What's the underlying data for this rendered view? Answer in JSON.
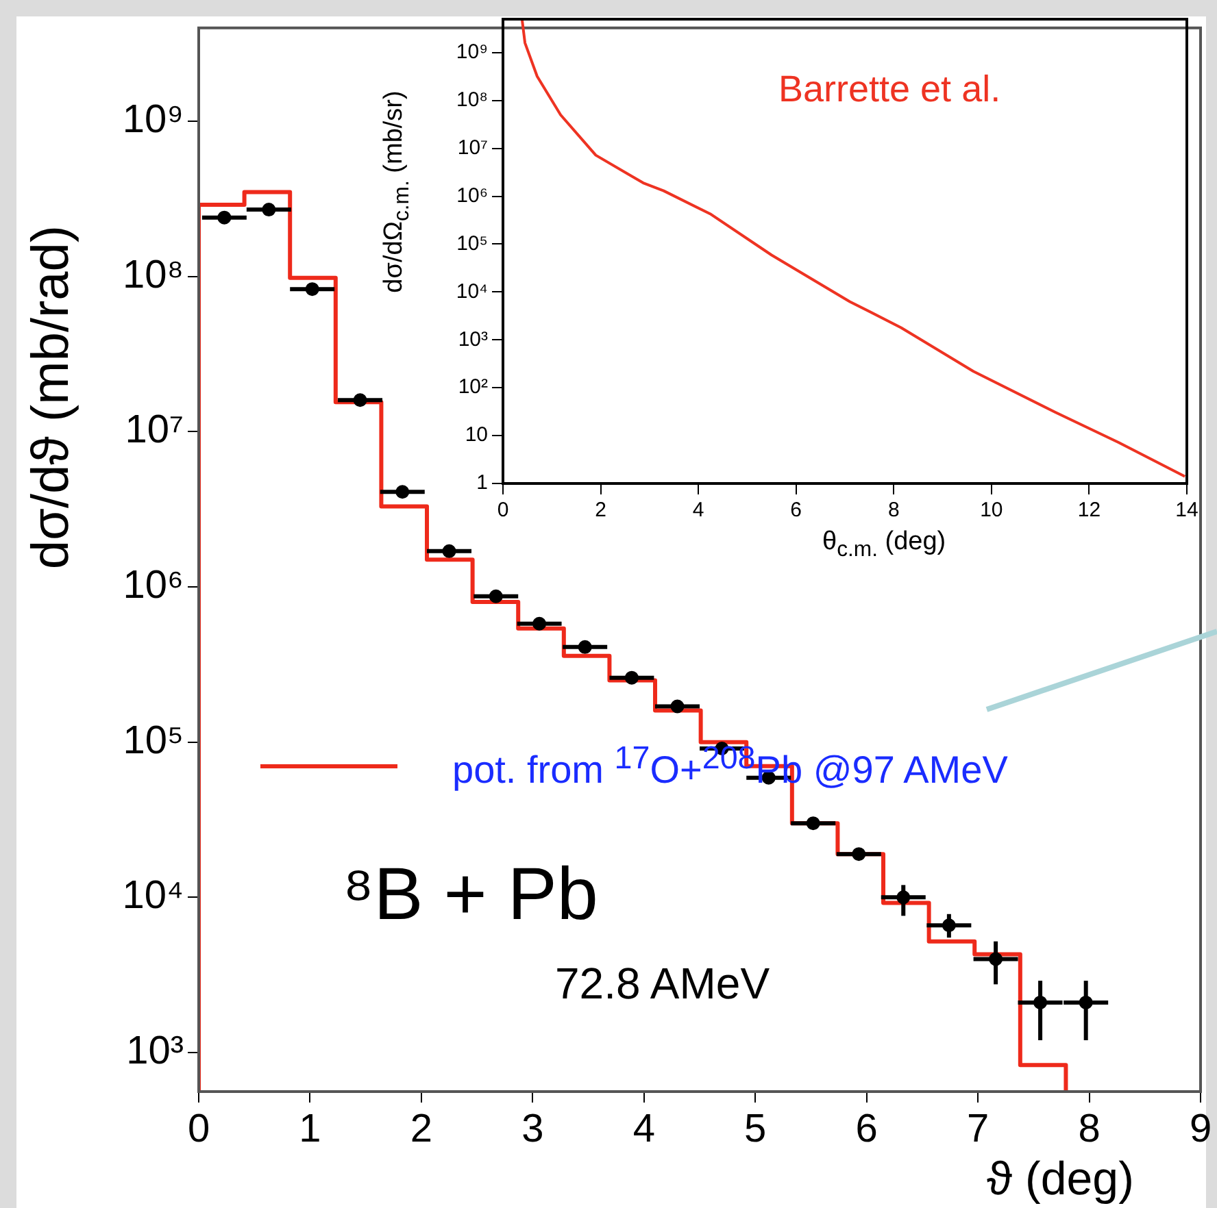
{
  "chart_data": [
    {
      "type": "histogram",
      "xlabel": "ϑ (deg)",
      "ylabel": "dσ/dϑ (mb/rad)",
      "xlim": [
        0,
        9
      ],
      "ylim": [
        560,
        4000000000
      ],
      "xticks": [
        0,
        1,
        2,
        3,
        4,
        5,
        6,
        7,
        8,
        9
      ],
      "yticks": [
        {
          "value": 1000,
          "label": "10³"
        },
        {
          "value": 10000,
          "label": "10⁴"
        },
        {
          "value": 100000,
          "label": "10⁵"
        },
        {
          "value": 1000000,
          "label": "10⁶"
        },
        {
          "value": 10000000,
          "label": "10⁷"
        },
        {
          "value": 100000000,
          "label": "10⁸"
        },
        {
          "value": 1000000000,
          "label": "10⁹"
        }
      ],
      "log": "y",
      "grid": false,
      "legend": "left",
      "marker": "circle",
      "annotations": [
        "⁸B + Pb",
        "72.8 AMeV"
      ],
      "series": [
        {
          "type": "histogram",
          "name": "pot. from $^{17}$O+$^{208}$Pb @97 AMeV",
          "color": "#ee2a1b",
          "bins": [
            0,
            0.41,
            0.82,
            1.23,
            1.64,
            2.05,
            2.46,
            2.87,
            3.28,
            3.69,
            4.1,
            4.51,
            4.92,
            5.33,
            5.74,
            6.15,
            6.56,
            6.97,
            7.38,
            7.79
          ],
          "values": [
            290000000,
            350000000,
            98000000,
            15500000,
            3300000,
            1500000,
            800000,
            540000,
            360000,
            250000,
            160000,
            100000,
            70000,
            30000,
            19000,
            9200,
            5200,
            4300,
            830
          ]
        },
        {
          "type": "scatter",
          "color": "#000000",
          "x": [
            0.23,
            0.63,
            1.02,
            1.45,
            1.83,
            2.25,
            2.67,
            3.06,
            3.47,
            3.89,
            4.3,
            4.7,
            5.12,
            5.52,
            5.93,
            6.33,
            6.74,
            7.16,
            7.56,
            7.97
          ],
          "values": [
            240000000,
            270000000,
            83000000,
            16000000,
            4100000,
            1700000,
            870000,
            580000,
            410000,
            260000,
            170000,
            91000,
            59000,
            30000,
            19000,
            10000,
            6600,
            4000,
            2100,
            2100
          ],
          "xerrors": [
            0.2,
            0.2,
            0.2,
            0.2,
            0.2,
            0.2,
            0.2,
            0.2,
            0.2,
            0.2,
            0.2,
            0.2,
            0.2,
            0.2,
            0.2,
            0.2,
            0.2,
            0.2,
            0.2,
            0.2
          ],
          "errors": [
            null,
            null,
            null,
            null,
            null,
            null,
            null,
            null,
            null,
            null,
            null,
            null,
            null,
            null,
            null,
            [
              7600,
              12000
            ],
            [
              5500,
              7800
            ],
            [
              2750,
              5200
            ],
            [
              1200,
              2900
            ],
            [
              1200,
              2900
            ]
          ]
        }
      ]
    },
    {
      "type": "line",
      "xlabel": "θ$_{c.m.}$ (deg)",
      "ylabel": "dσ/dΩ$_{c.m.}$ (mb/sr)",
      "xlim": [
        0,
        14
      ],
      "ylim": [
        1,
        5000000000
      ],
      "xticks": [
        0,
        2,
        4,
        6,
        8,
        10,
        12,
        14
      ],
      "yticks": [
        1,
        10,
        {
          "value": 100,
          "label": "10²"
        },
        {
          "value": 1000,
          "label": "10³"
        },
        {
          "value": 10000,
          "label": "10⁴"
        },
        {
          "value": 100000,
          "label": "10⁵"
        },
        {
          "value": 1000000,
          "label": "10⁶"
        },
        {
          "value": 10000000,
          "label": "10⁷"
        },
        {
          "value": 100000000,
          "label": "10⁸"
        },
        {
          "value": 1000000000,
          "label": "10⁹"
        }
      ],
      "log": "y",
      "grid": false,
      "marker": "none",
      "annotations": [
        "Barrette et al."
      ],
      "series": [
        {
          "color": "#ee3322",
          "x": [
            0.39,
            0.45,
            0.7,
            1.18,
            1.9,
            2.87,
            3.29,
            4.24,
            5.5,
            7.1,
            8.15,
            9.63,
            11.3,
            12.6,
            13.96
          ],
          "values": [
            5000000000,
            1600000000,
            320000000,
            50000000,
            7200000,
            1900000,
            1300000,
            430000,
            59000,
            6300,
            1800,
            220,
            31,
            7.2,
            1.4
          ]
        }
      ]
    }
  ]
}
